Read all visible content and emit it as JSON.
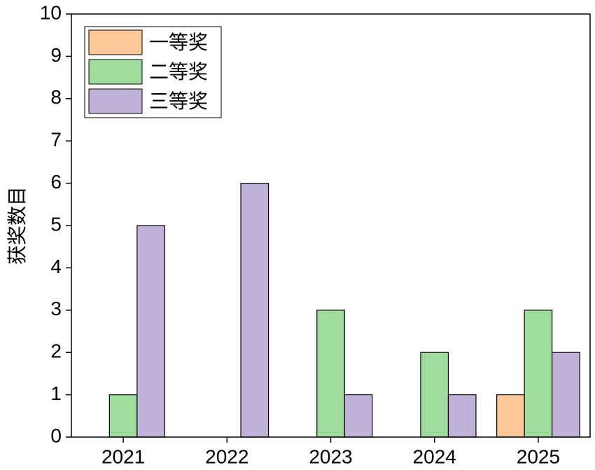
{
  "chart_data": {
    "type": "bar",
    "y_label": "获奖数目",
    "categories": [
      "2021",
      "2022",
      "2023",
      "2024",
      "2025"
    ],
    "series": [
      {
        "name": "一等奖",
        "color": "#fdc897",
        "values": [
          0,
          0,
          0,
          0,
          1
        ]
      },
      {
        "name": "二等奖",
        "color": "#9fdc9d",
        "values": [
          1,
          0,
          3,
          2,
          3
        ]
      },
      {
        "name": "三等奖",
        "color": "#c1b2d9",
        "values": [
          5,
          6,
          1,
          1,
          2
        ]
      }
    ],
    "ylim": [
      0,
      10
    ],
    "yticks": [
      0,
      1,
      2,
      3,
      4,
      5,
      6,
      7,
      8,
      9,
      10
    ],
    "legend": "upper left"
  }
}
